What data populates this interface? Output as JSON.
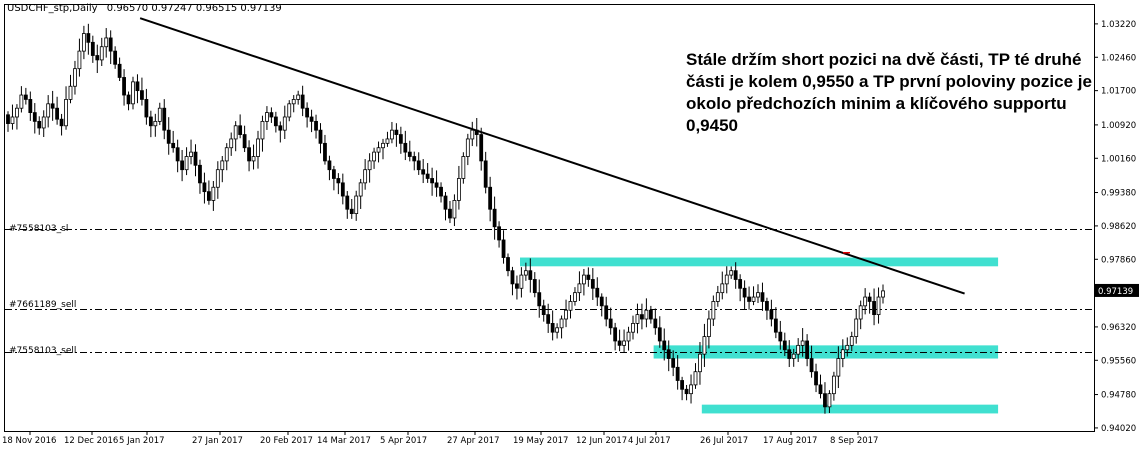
{
  "header": {
    "symbol": "USDCHF_stp,Daily",
    "ohlc": "0.96570 0.97247 0.96515 0.97139"
  },
  "note": "Stále držím short pozici na dvě části, TP té druhé části je kolem 0,9550 a TP první poloviny pozice je okolo předchozích minim a klíčového supportu 0,9450",
  "levels": [
    {
      "label": "#7558103_sl",
      "price": 0.9855
    },
    {
      "label": "#7661189_sell",
      "price": 0.9672
    },
    {
      "label": "#7558103_sell",
      "price": 0.9575
    }
  ],
  "colors": {
    "zone": "#40e0d0",
    "trendline": "#000000",
    "up": "#000000",
    "down": "#000000",
    "accent_box": "#000000"
  },
  "chart_data": {
    "type": "candlestick",
    "current_price_label": "0.97139",
    "y_ticks": [
      "1.03220",
      "1.02460",
      "1.01700",
      "1.00920",
      "1.00160",
      "0.99380",
      "0.98620",
      "0.97860",
      "0.97139",
      "0.96320",
      "0.95560",
      "0.94780",
      "0.94020"
    ],
    "ylim": [
      0.9395,
      1.0365
    ],
    "x_ticks": [
      "18 Nov 2016",
      "12 Dec 2016",
      "5 Jan 2017",
      "27 Jan 2017",
      "20 Feb 2017",
      "14 Mar 2017",
      "5 Apr 2017",
      "27 Apr 2017",
      "19 May 2017",
      "12 Jun 2017",
      "4 Jul 2017",
      "26 Jul 2017",
      "17 Aug 2017",
      "8 Sep 2017"
    ],
    "trendline": {
      "from": {
        "date": "2 Jan 2017",
        "price": 1.0335
      },
      "to": {
        "date": "13 Oct 2017",
        "price": 0.9708
      }
    },
    "zones": [
      {
        "from": "12 May 2017",
        "to": "24 Oct 2017",
        "high": 0.979,
        "low": 0.977
      },
      {
        "from": "3 Jul 2017",
        "to": "24 Oct 2017",
        "high": 0.959,
        "low": 0.956
      },
      {
        "from": "18 Jul 2017",
        "to": "24 Oct 2017",
        "high": 0.9455,
        "low": 0.9435
      }
    ],
    "closes": [
      1.0095,
      1.011,
      1.013,
      1.016,
      1.015,
      1.012,
      1.01,
      1.0085,
      1.011,
      1.014,
      1.013,
      1.0105,
      1.009,
      1.015,
      1.018,
      1.022,
      1.026,
      1.03,
      1.028,
      1.025,
      1.024,
      1.027,
      1.029,
      1.026,
      1.023,
      1.02,
      1.016,
      1.014,
      1.019,
      1.017,
      1.015,
      1.011,
      1.009,
      1.01,
      1.013,
      1.008,
      1.005,
      1.004,
      1.001,
      0.999,
      1.002,
      1.003,
      1.0,
      0.996,
      0.994,
      0.992,
      0.995,
      0.999,
      1.001,
      1.004,
      1.006,
      1.009,
      1.007,
      1.004,
      1.001,
      1.002,
      1.006,
      1.01,
      1.012,
      1.011,
      1.009,
      1.008,
      1.011,
      1.014,
      1.015,
      1.016,
      1.013,
      1.011,
      1.01,
      1.008,
      1.005,
      1.001,
      0.999,
      0.997,
      0.996,
      0.993,
      0.99,
      0.989,
      0.993,
      0.996,
      0.999,
      1.001,
      1.003,
      1.004,
      1.005,
      1.006,
      1.008,
      1.007,
      1.005,
      1.003,
      1.002,
      1.001,
      0.999,
      0.998,
      0.997,
      0.996,
      0.995,
      0.993,
      0.99,
      0.988,
      0.992,
      0.997,
      1.002,
      1.006,
      1.008,
      1.007,
      1.001,
      0.995,
      0.99,
      0.986,
      0.983,
      0.979,
      0.976,
      0.973,
      0.972,
      0.975,
      0.976,
      0.974,
      0.971,
      0.968,
      0.966,
      0.964,
      0.962,
      0.963,
      0.965,
      0.967,
      0.969,
      0.971,
      0.973,
      0.975,
      0.974,
      0.972,
      0.97,
      0.968,
      0.965,
      0.963,
      0.96,
      0.959,
      0.96,
      0.962,
      0.964,
      0.966,
      0.965,
      0.967,
      0.965,
      0.963,
      0.96,
      0.958,
      0.956,
      0.954,
      0.951,
      0.949,
      0.948,
      0.95,
      0.953,
      0.957,
      0.961,
      0.965,
      0.969,
      0.971,
      0.973,
      0.975,
      0.976,
      0.974,
      0.972,
      0.97,
      0.969,
      0.97,
      0.971,
      0.969,
      0.967,
      0.965,
      0.962,
      0.96,
      0.958,
      0.956,
      0.957,
      0.959,
      0.96,
      0.956,
      0.953,
      0.95,
      0.948,
      0.945,
      0.948,
      0.952,
      0.956,
      0.958,
      0.959,
      0.961,
      0.965,
      0.968,
      0.97,
      0.969,
      0.966,
      0.97,
      0.9714
    ]
  }
}
